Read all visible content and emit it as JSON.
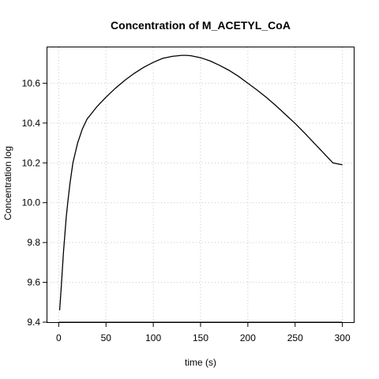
{
  "chart_data": {
    "type": "line",
    "title": "Concentration of M_ACETYL_CoA",
    "xlabel": "time (s)",
    "ylabel": "Concentration log",
    "xlim": [
      -12,
      312
    ],
    "ylim": [
      9.4,
      10.78
    ],
    "x_ticks": [
      0,
      50,
      100,
      150,
      200,
      250,
      300
    ],
    "y_ticks": [
      9.4,
      9.6,
      9.8,
      10.0,
      10.2,
      10.4,
      10.6
    ],
    "x_tick_labels": [
      "0",
      "50",
      "100",
      "150",
      "200",
      "250",
      "300"
    ],
    "y_tick_labels": [
      "9.4",
      "9.6",
      "9.8",
      "10.0",
      "10.2",
      "10.4",
      "10.6"
    ],
    "grid": true,
    "series": [
      {
        "color": "#000000",
        "x": [
          1,
          3,
          5,
          8,
          10,
          12,
          15,
          18,
          20,
          25,
          30,
          35,
          40,
          50,
          60,
          70,
          80,
          90,
          100,
          110,
          120,
          130,
          135,
          140,
          150,
          160,
          170,
          180,
          190,
          200,
          210,
          220,
          230,
          240,
          250,
          260,
          270,
          280,
          290,
          300
        ],
        "y": [
          9.46,
          9.6,
          9.75,
          9.93,
          10.02,
          10.1,
          10.2,
          10.26,
          10.3,
          10.37,
          10.42,
          10.45,
          10.48,
          10.53,
          10.575,
          10.615,
          10.65,
          10.68,
          10.705,
          10.725,
          10.735,
          10.74,
          10.74,
          10.738,
          10.728,
          10.712,
          10.69,
          10.665,
          10.635,
          10.6,
          10.565,
          10.527,
          10.486,
          10.442,
          10.398,
          10.35,
          10.3,
          10.25,
          10.2,
          10.19
        ]
      }
    ]
  }
}
